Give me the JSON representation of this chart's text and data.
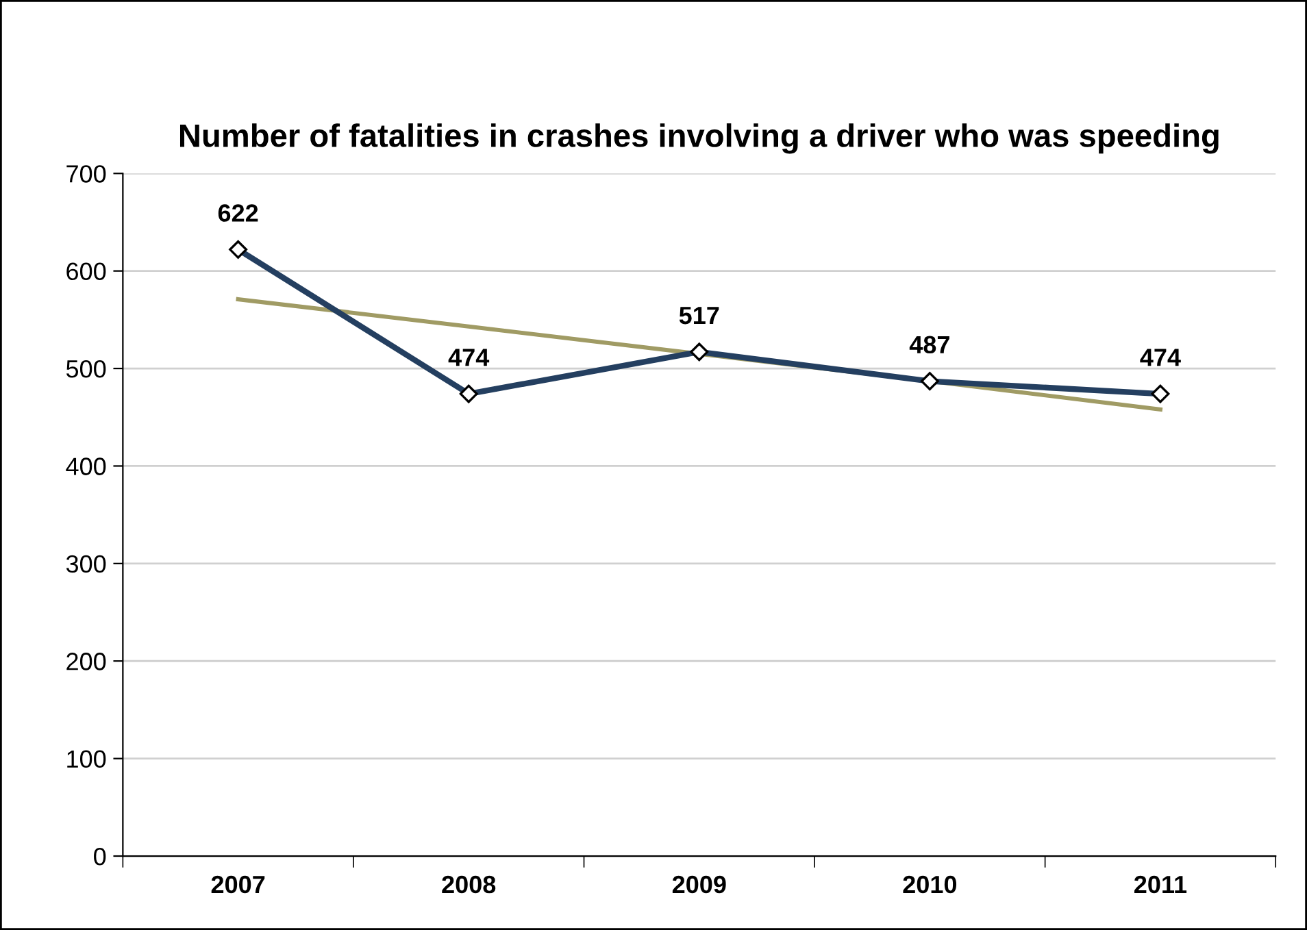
{
  "chart_data": {
    "type": "line",
    "title": "Number of fatalities in crashes involving a driver who was speeding",
    "categories": [
      "2007",
      "2008",
      "2009",
      "2010",
      "2011"
    ],
    "series": [
      {
        "color": "#243f60",
        "values": [
          622,
          474,
          517,
          487,
          474
        ],
        "value_labels": [
          "622",
          "474",
          "517",
          "487",
          "474"
        ],
        "marker": "diamond"
      },
      {
        "color": "#a09b64",
        "values": [
          571,
          543,
          515,
          487,
          458
        ],
        "marker": "none"
      }
    ],
    "ylim": [
      0,
      700
    ],
    "yticks": [
      0,
      100,
      200,
      300,
      400,
      500,
      600,
      700
    ],
    "grid": "y",
    "legend": false
  }
}
